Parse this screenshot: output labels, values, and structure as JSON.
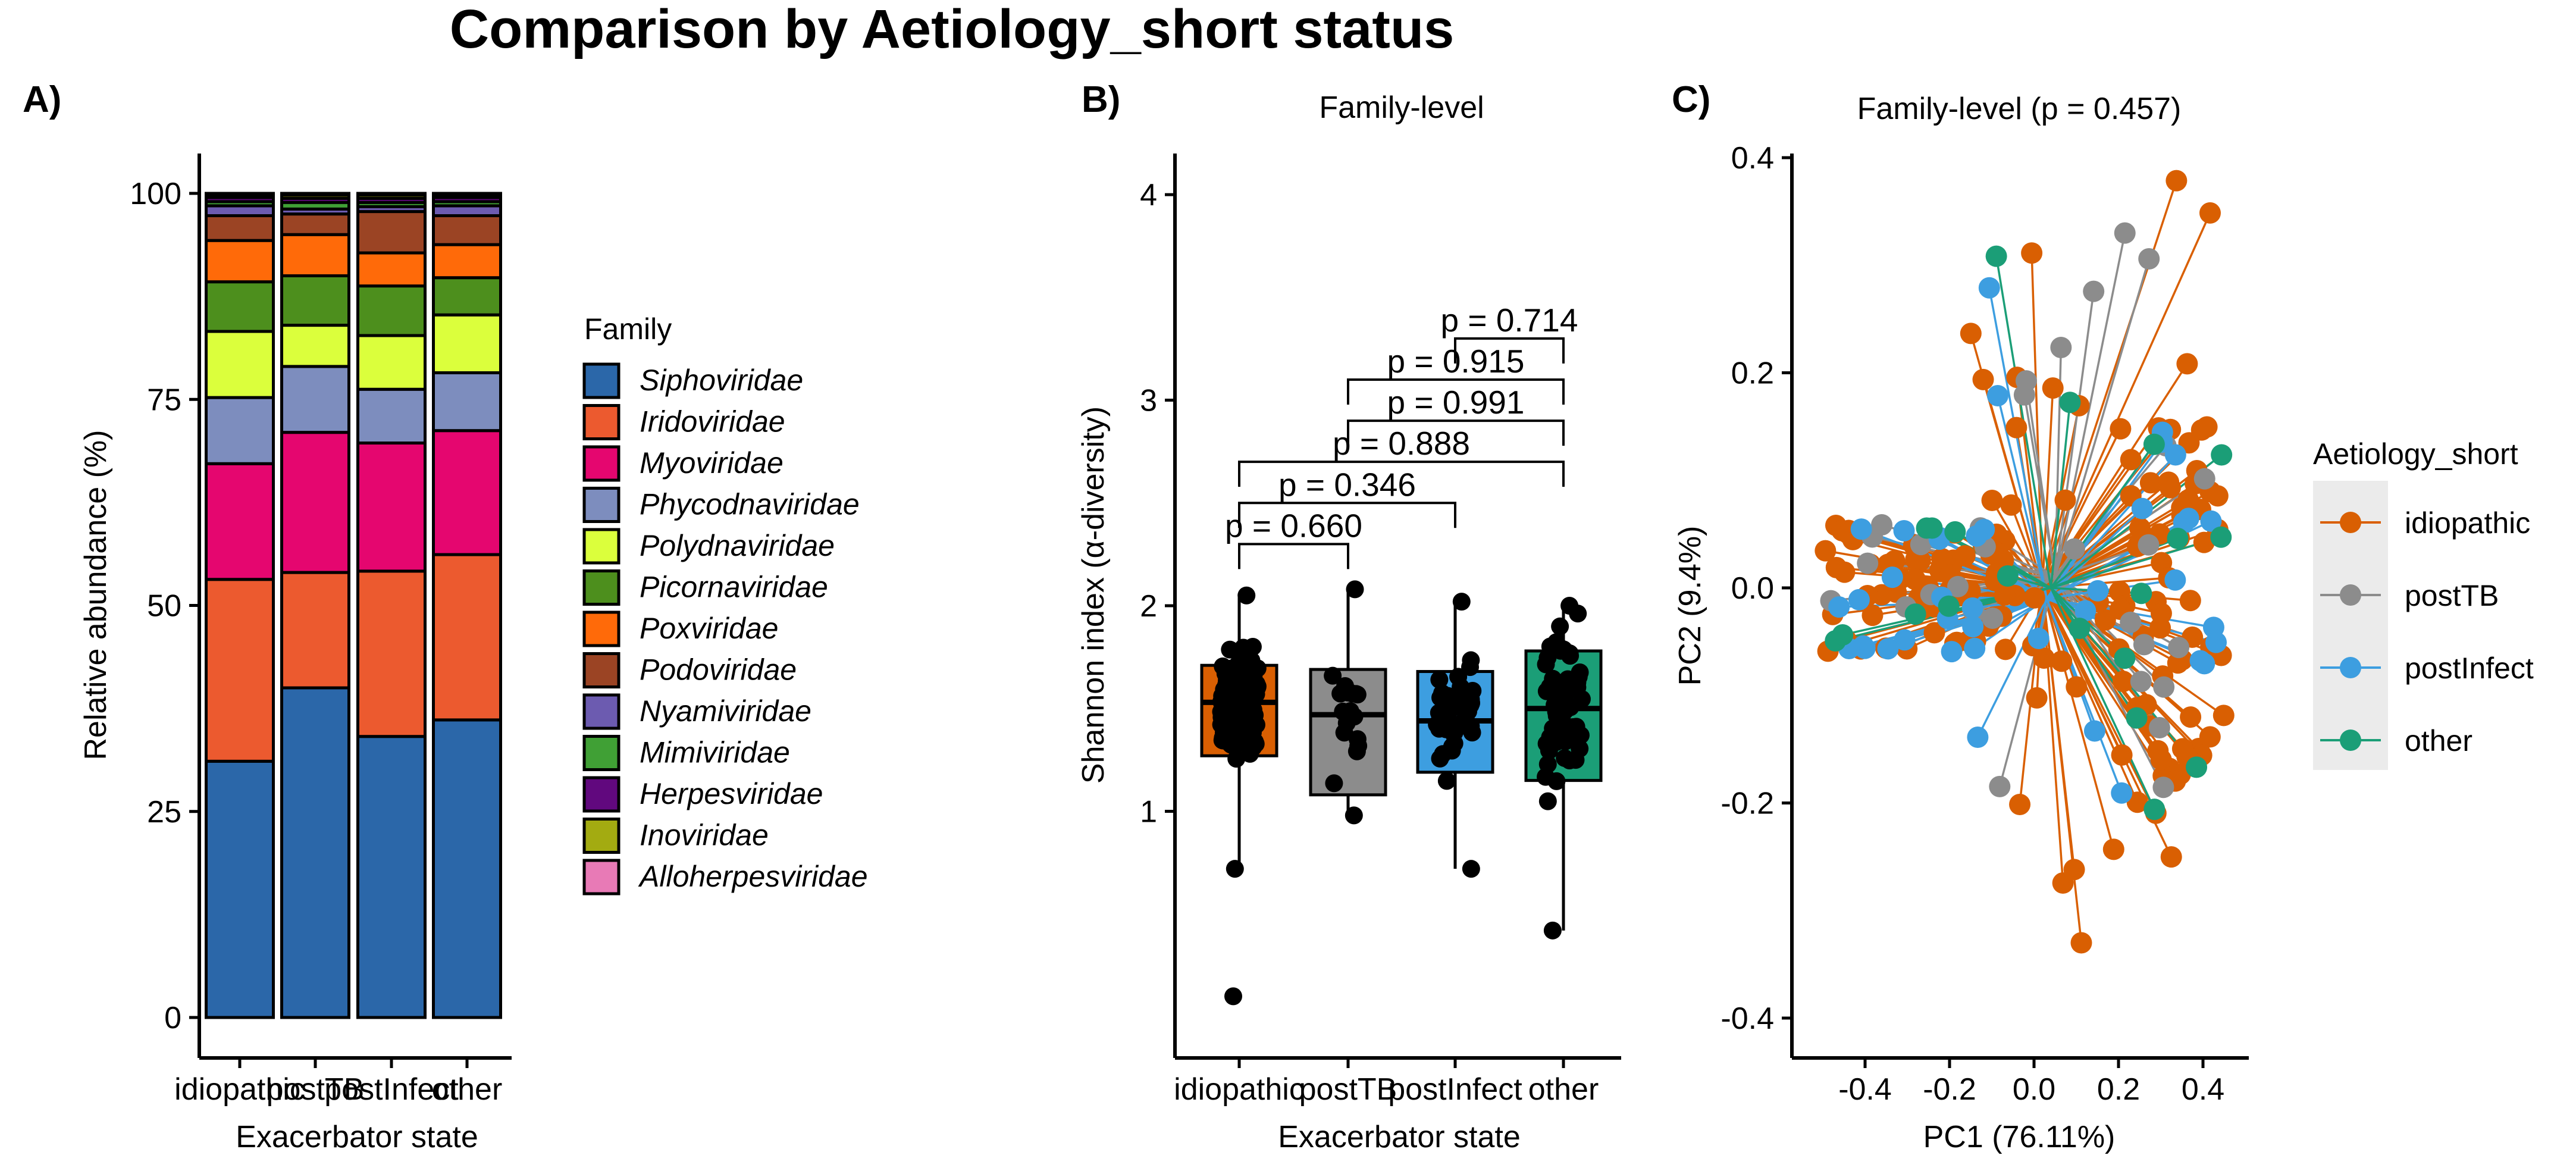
{
  "title": "Comparison by Aetiology_short status",
  "chart_data": [
    {
      "panel": "A)",
      "type": "bar",
      "stacked": true,
      "title": "",
      "xlabel": "Exacerbator state",
      "ylabel": "Relative abundance (%)",
      "ylim": [
        0,
        100
      ],
      "yticks": [
        "0",
        "25",
        "50",
        "75",
        "100"
      ],
      "categories": [
        "idiopathic",
        "postTB",
        "postInfect",
        "other"
      ],
      "legend_title": "Family",
      "legend_position": "right",
      "series": [
        {
          "name": "Siphoviridae",
          "color": "#2b67a9",
          "values": [
            31,
            40,
            34,
            36
          ]
        },
        {
          "name": "Iridoviridae",
          "color": "#ec5a2f",
          "values": [
            22,
            14,
            20,
            20
          ]
        },
        {
          "name": "Myoviridae",
          "color": "#e5066f",
          "values": [
            14,
            17,
            15.5,
            15
          ]
        },
        {
          "name": "Phycodnaviridae",
          "color": "#7d8dbe",
          "values": [
            8,
            8,
            6.5,
            7
          ]
        },
        {
          "name": "Polydnaviridae",
          "color": "#dbff3c",
          "values": [
            8,
            5,
            6.5,
            7
          ]
        },
        {
          "name": "Picornaviridae",
          "color": "#4d8f1d",
          "values": [
            6,
            6,
            6,
            4.5
          ]
        },
        {
          "name": "Poxviridae",
          "color": "#ff6a09",
          "values": [
            5,
            5,
            4,
            4
          ]
        },
        {
          "name": "Podoviridae",
          "color": "#9b4424",
          "values": [
            3,
            2.5,
            5,
            3.5
          ]
        },
        {
          "name": "Nyamiviridae",
          "color": "#6c5bb0",
          "values": [
            1.2,
            0.6,
            0.6,
            1.2
          ]
        },
        {
          "name": "Mimiviridae",
          "color": "#40a035",
          "values": [
            0.5,
            0.8,
            0.5,
            0.5
          ]
        },
        {
          "name": "Herpesviridae",
          "color": "#61087e",
          "values": [
            0.5,
            0.5,
            0.5,
            0.5
          ]
        },
        {
          "name": "Inoviridae",
          "color": "#a3ab11",
          "values": [
            0.3,
            0.4,
            0.4,
            0.3
          ]
        },
        {
          "name": "Alloherpesviridae",
          "color": "#e87ab6",
          "values": [
            0.2,
            0.2,
            0.2,
            0.2
          ]
        }
      ]
    },
    {
      "panel": "B)",
      "type": "box",
      "title": "Family-level",
      "xlabel": "Exacerbator state",
      "ylabel": "Shannon index (α-diversity)",
      "ylim": [
        -0.2,
        4.2
      ],
      "yticks": [
        "1",
        "2",
        "3",
        "4"
      ],
      "categories": [
        "idiopathic",
        "postTB",
        "postInfect",
        "other"
      ],
      "colors": [
        "#d95f02",
        "#8c8c8c",
        "#3d9ee0",
        "#1b9e77"
      ],
      "boxes": [
        {
          "q1": 1.27,
          "median": 1.53,
          "q3": 1.71,
          "whisker_low": 0.72,
          "whisker_high": 2.05
        },
        {
          "q1": 1.08,
          "median": 1.47,
          "q3": 1.69,
          "whisker_low": 0.98,
          "whisker_high": 2.08
        },
        {
          "q1": 1.19,
          "median": 1.44,
          "q3": 1.68,
          "whisker_low": 0.72,
          "whisker_high": 2.02
        },
        {
          "q1": 1.15,
          "median": 1.5,
          "q3": 1.78,
          "whisker_low": 0.42,
          "whisker_high": 2.0
        }
      ],
      "outliers": [
        {
          "group": "idiopathic",
          "value": 0.1
        }
      ],
      "comparisons": [
        {
          "from": "idiopathic",
          "to": "postTB",
          "label": "p = 0.660",
          "y": 2.3
        },
        {
          "from": "idiopathic",
          "to": "postInfect",
          "label": "p = 0.346",
          "y": 2.5
        },
        {
          "from": "idiopathic",
          "to": "other",
          "label": "p = 0.888",
          "y": 2.7
        },
        {
          "from": "postTB",
          "to": "other",
          "label": "p = 0.991",
          "y": 2.9
        },
        {
          "from": "postTB",
          "to": "other",
          "label": "p = 0.915",
          "y": 3.1
        },
        {
          "from": "postInfect",
          "to": "other",
          "label": "p = 0.714",
          "y": 3.3
        }
      ]
    },
    {
      "panel": "C)",
      "type": "scatter",
      "title": "Family-level (p = 0.457)",
      "xlabel": "PC1 (76.11%)",
      "ylabel": "PC2 (9.4%)",
      "xlim": [
        -0.54,
        0.48
      ],
      "ylim": [
        -0.42,
        0.42
      ],
      "xticks": [
        "-0.4",
        "-0.2",
        "0.0",
        "0.2",
        "0.4"
      ],
      "yticks": [
        "-0.4",
        "-0.2",
        "0.0",
        "0.2",
        "0.4"
      ],
      "legend_title": "Aetiology_short",
      "legend_position": "right",
      "series": [
        {
          "name": "idiopathic",
          "color": "#d95f02",
          "centroid": [
            0.02,
            0.0
          ]
        },
        {
          "name": "postTB",
          "color": "#8c8c8c",
          "centroid": [
            0.05,
            0.01
          ]
        },
        {
          "name": "postInfect",
          "color": "#3d9ee0",
          "centroid": [
            0.03,
            -0.01
          ]
        },
        {
          "name": "other",
          "color": "#1b9e77",
          "centroid": [
            0.04,
            0.0
          ]
        }
      ]
    }
  ]
}
